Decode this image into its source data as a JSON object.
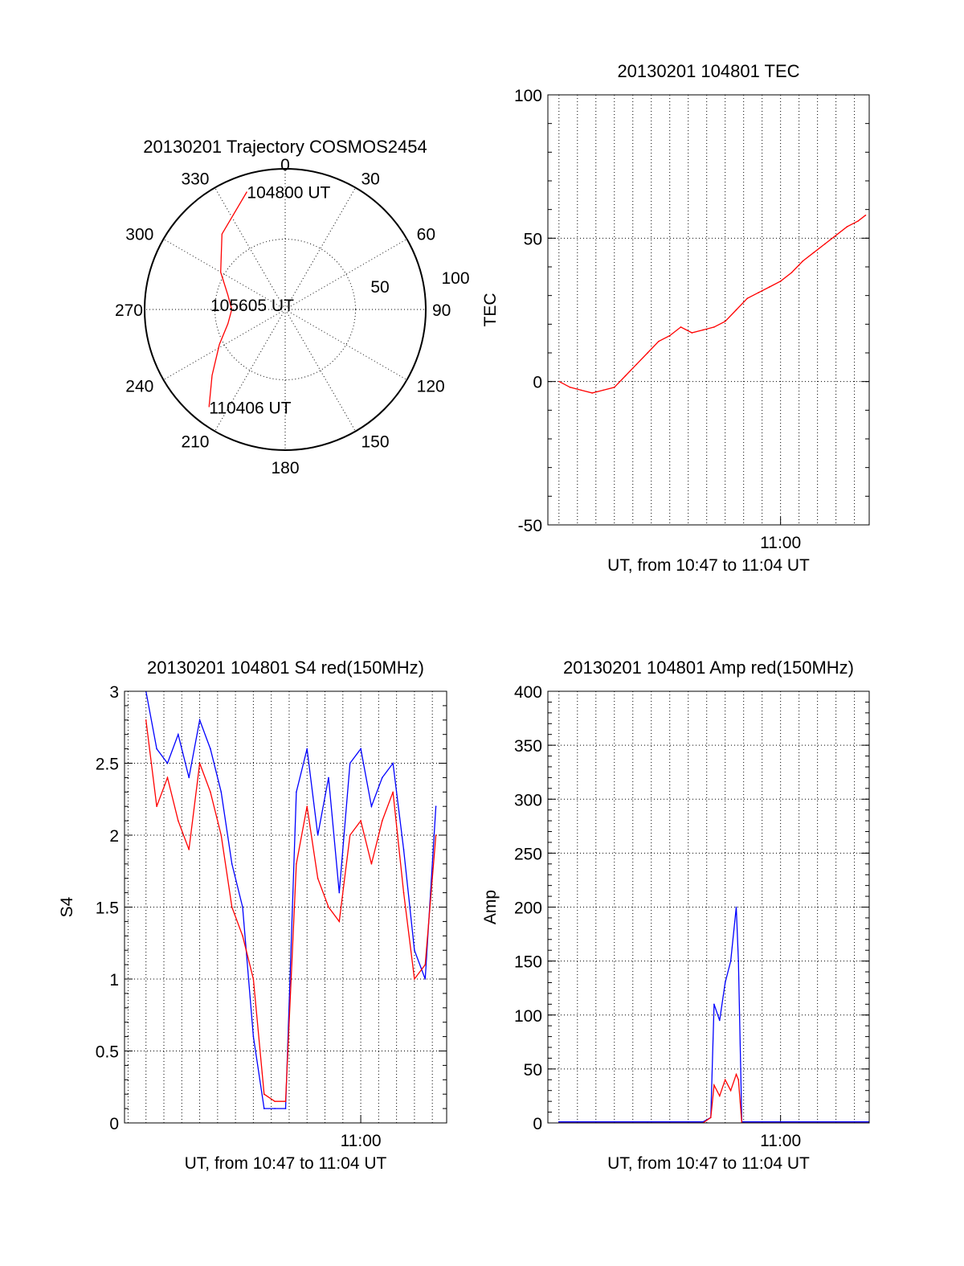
{
  "chart_data": [
    {
      "id": "trajectory",
      "type": "polar",
      "title": "20130201 Trajectory COSMOS2454",
      "azimuth_labels": [
        "0",
        "30",
        "60",
        "90",
        "120",
        "150",
        "180",
        "210",
        "240",
        "270",
        "300",
        "330"
      ],
      "radial_labels": [
        "50",
        "100"
      ],
      "trajectory_color": "#ff0000",
      "trajectory_points": [
        {
          "az": 342,
          "el": 88
        },
        {
          "az": 320,
          "el": 70
        },
        {
          "az": 300,
          "el": 53
        },
        {
          "az": 284,
          "el": 42
        },
        {
          "az": 270,
          "el": 38
        },
        {
          "az": 256,
          "el": 42
        },
        {
          "az": 242,
          "el": 53
        },
        {
          "az": 228,
          "el": 70
        },
        {
          "az": 218,
          "el": 88
        }
      ],
      "annotations": [
        {
          "text": "104800 UT",
          "az": 342,
          "el": 88
        },
        {
          "text": "105605 UT",
          "az": 270,
          "el": 34
        },
        {
          "text": "110406 UT",
          "az": 218,
          "el": 88
        }
      ]
    },
    {
      "id": "tec",
      "type": "line",
      "title": "20130201 104801 TEC",
      "ylabel": "TEC",
      "xlabel": "UT, from 10:47 to 11:04 UT",
      "xlim": [
        10.79,
        11.08
      ],
      "ylim": [
        -50,
        100
      ],
      "yticks": [
        -50,
        0,
        50,
        100
      ],
      "xtick_labels": [
        {
          "value": 11.0,
          "label": "11:00"
        }
      ],
      "grid": true,
      "series": [
        {
          "color": "#ff0000",
          "x": [
            10.8003,
            10.81,
            10.82,
            10.83,
            10.84,
            10.85,
            10.86,
            10.87,
            10.88,
            10.89,
            10.9,
            10.91,
            10.92,
            10.93,
            10.94,
            10.95,
            10.96,
            10.97,
            10.98,
            10.99,
            11.0,
            11.01,
            11.02,
            11.03,
            11.04,
            11.05,
            11.06,
            11.07,
            11.0767
          ],
          "y": [
            0,
            -2,
            -3,
            -4,
            -3,
            -2,
            2,
            6,
            10,
            14,
            16,
            19,
            17,
            18,
            19,
            21,
            25,
            29,
            31,
            33,
            35,
            38,
            42,
            45,
            48,
            51,
            54,
            56,
            58
          ]
        }
      ]
    },
    {
      "id": "s4",
      "type": "line",
      "title": "20130201 104801 S4 red(150MHz)",
      "ylabel": "S4",
      "xlabel": "UT, from 10:47 to 11:04 UT",
      "xlim": [
        10.78,
        11.08
      ],
      "ylim": [
        0,
        3
      ],
      "yticks": [
        0,
        0.5,
        1,
        1.5,
        2,
        2.5,
        3
      ],
      "ytick_labels": [
        "0",
        "0.5",
        "1",
        "1.5",
        "2",
        "2.5",
        "3"
      ],
      "xtick_labels": [
        {
          "value": 11.0,
          "label": "11:00"
        }
      ],
      "grid": true,
      "series": [
        {
          "color": "#0000ff",
          "x": [
            10.8,
            10.81,
            10.82,
            10.83,
            10.84,
            10.85,
            10.86,
            10.87,
            10.88,
            10.89,
            10.9,
            10.91,
            10.92,
            10.93,
            10.94,
            10.95,
            10.96,
            10.97,
            10.98,
            10.99,
            11.0,
            11.01,
            11.02,
            11.03,
            11.04,
            11.05,
            11.06,
            11.07
          ],
          "y": [
            3.0,
            2.6,
            2.5,
            2.7,
            2.4,
            2.8,
            2.6,
            2.3,
            1.8,
            1.5,
            0.6,
            0.1,
            0.1,
            0.1,
            2.3,
            2.6,
            2.0,
            2.4,
            1.6,
            2.5,
            2.6,
            2.2,
            2.4,
            2.5,
            1.9,
            1.2,
            1.0,
            2.2
          ]
        },
        {
          "color": "#ff0000",
          "x": [
            10.8,
            10.81,
            10.82,
            10.83,
            10.84,
            10.85,
            10.86,
            10.87,
            10.88,
            10.89,
            10.9,
            10.91,
            10.92,
            10.93,
            10.94,
            10.95,
            10.96,
            10.97,
            10.98,
            10.99,
            11.0,
            11.01,
            11.02,
            11.03,
            11.04,
            11.05,
            11.06,
            11.07
          ],
          "y": [
            2.8,
            2.2,
            2.4,
            2.1,
            1.9,
            2.5,
            2.3,
            2.0,
            1.5,
            1.3,
            1.0,
            0.2,
            0.15,
            0.15,
            1.8,
            2.2,
            1.7,
            1.5,
            1.4,
            2.0,
            2.1,
            1.8,
            2.1,
            2.3,
            1.6,
            1.0,
            1.1,
            2.0
          ]
        }
      ]
    },
    {
      "id": "amp",
      "type": "line",
      "title": "20130201 104801 Amp red(150MHz)",
      "ylabel": "Amp",
      "xlabel": "UT, from 10:47 to 11:04 UT",
      "xlim": [
        10.79,
        11.08
      ],
      "ylim": [
        0,
        400
      ],
      "yticks": [
        0,
        50,
        100,
        150,
        200,
        250,
        300,
        350,
        400
      ],
      "xtick_labels": [
        {
          "value": 11.0,
          "label": "11:00"
        }
      ],
      "grid": true,
      "series": [
        {
          "color": "#0000ff",
          "x": [
            10.8,
            10.88,
            10.93,
            10.937,
            10.94,
            10.945,
            10.95,
            10.955,
            10.96,
            10.962,
            10.965,
            11.0,
            11.08
          ],
          "y": [
            1,
            1,
            1,
            5,
            110,
            95,
            130,
            150,
            200,
            150,
            1,
            1,
            1
          ]
        },
        {
          "color": "#ff0000",
          "x": [
            10.8,
            10.93,
            10.937,
            10.94,
            10.945,
            10.95,
            10.955,
            10.96,
            10.962,
            10.965,
            11.08
          ],
          "y": [
            0,
            0,
            5,
            35,
            25,
            40,
            30,
            45,
            40,
            0,
            0
          ]
        }
      ]
    }
  ]
}
